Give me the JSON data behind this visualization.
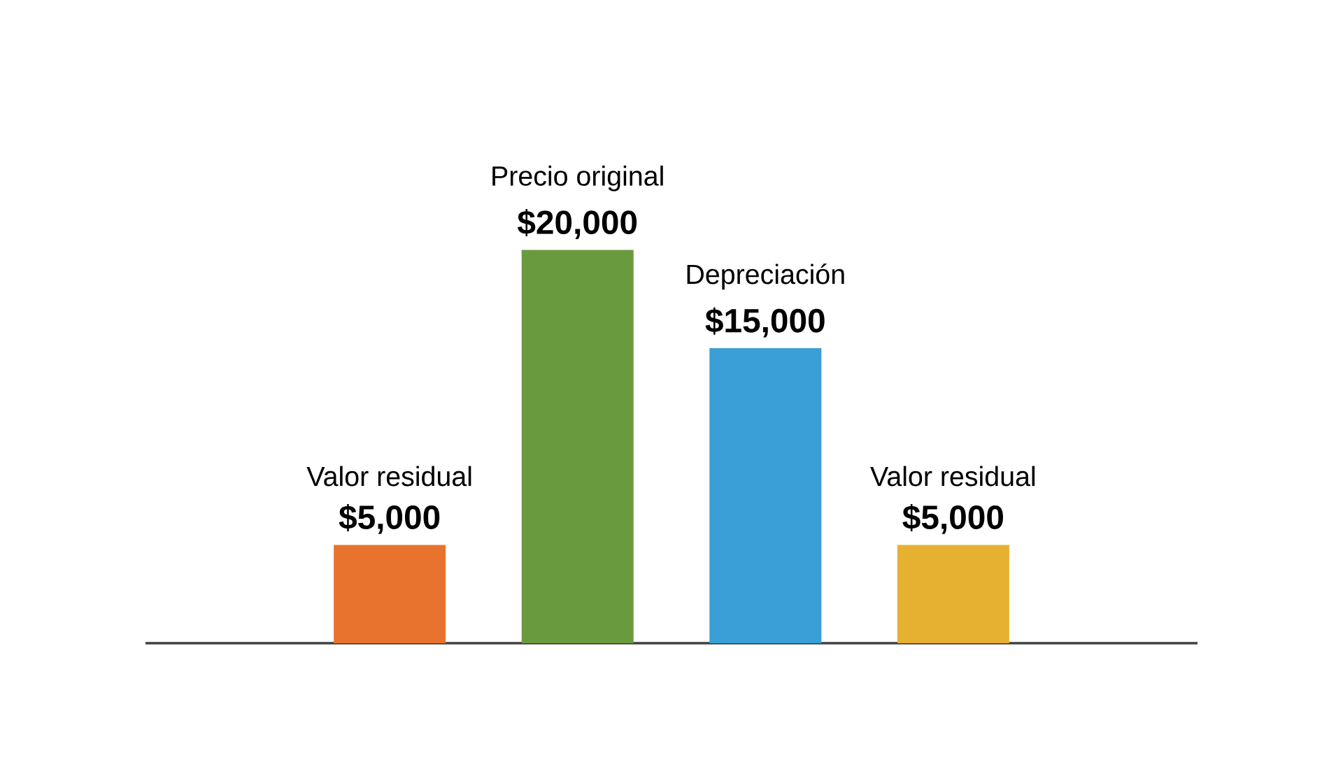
{
  "chart_data": {
    "type": "bar",
    "categories": [
      "Valor residual",
      "Precio original",
      "Depreciación",
      "Valor residual"
    ],
    "values": [
      5000,
      20000,
      15000,
      5000
    ],
    "colors": [
      "#e8732e",
      "#6a9a3e",
      "#3a9fd6",
      "#e6b030"
    ],
    "value_labels": [
      "$5,000",
      "$20,000",
      "$15,000",
      "$5,000"
    ]
  }
}
